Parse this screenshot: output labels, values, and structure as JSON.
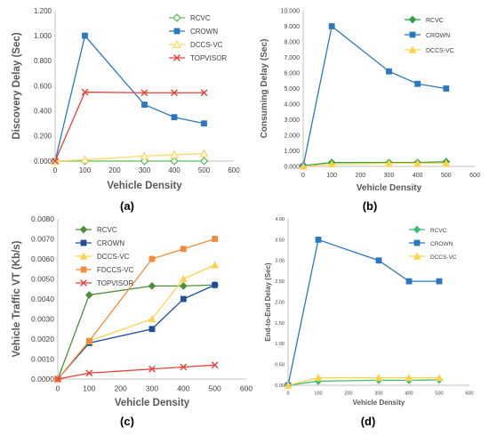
{
  "chart_data": [
    {
      "type": "line",
      "panel_label": "(a)",
      "xlabel": "Vehicle Density",
      "ylabel": "Discovery Delay (Sec)",
      "x_ticks": [
        "0",
        "100",
        "200",
        "300",
        "400",
        "500",
        "600"
      ],
      "y_ticks": [
        "0.000",
        "0.200",
        "0.400",
        "0.600",
        "0.800",
        "1.000",
        "1.200"
      ],
      "xlim": [
        0,
        600
      ],
      "ylim": [
        0,
        1.2
      ],
      "grid": false,
      "legend": "top-right",
      "series": [
        {
          "name": "RCVC",
          "color": "#5ebf5e",
          "marker": "diamond-open",
          "x": [
            0,
            100,
            300,
            400,
            500
          ],
          "values": [
            0,
            0.0,
            0.0,
            0.0,
            0.0
          ]
        },
        {
          "name": "CROWN",
          "color": "#2a78c0",
          "marker": "square",
          "x": [
            0,
            100,
            300,
            400,
            500
          ],
          "values": [
            0,
            1.0,
            0.45,
            0.35,
            0.3
          ]
        },
        {
          "name": "DCCS-VC",
          "color": "#ffd966",
          "marker": "triangle-open",
          "x": [
            0,
            100,
            300,
            400,
            500
          ],
          "values": [
            0,
            0.01,
            0.04,
            0.05,
            0.06
          ]
        },
        {
          "name": "TOPVISOR",
          "color": "#e8413a",
          "marker": "x",
          "x": [
            0,
            100,
            300,
            400,
            500
          ],
          "values": [
            0,
            0.55,
            0.545,
            0.545,
            0.545
          ]
        }
      ]
    },
    {
      "type": "line",
      "panel_label": "(b)",
      "xlabel": "Vehicle Density",
      "ylabel": "Consuming Delay (Sec)",
      "x_ticks": [
        "0",
        "100",
        "200",
        "300",
        "400",
        "500",
        "600"
      ],
      "y_ticks": [
        "0.000",
        "1.000",
        "2.000",
        "3.000",
        "4.000",
        "5.000",
        "6.000",
        "7.000",
        "8.000",
        "9.000",
        "10.000"
      ],
      "xlim": [
        0,
        600
      ],
      "ylim": [
        0,
        10
      ],
      "grid": false,
      "legend": "top-right",
      "series": [
        {
          "name": "RCVC",
          "color": "#2e9e4a",
          "marker": "diamond",
          "x": [
            0,
            100,
            300,
            400,
            500
          ],
          "values": [
            0.05,
            0.25,
            0.25,
            0.25,
            0.3
          ]
        },
        {
          "name": "CROWN",
          "color": "#2a78c0",
          "marker": "square",
          "x": [
            0,
            100,
            300,
            400,
            500
          ],
          "values": [
            0,
            9.0,
            6.1,
            5.3,
            5.0
          ]
        },
        {
          "name": "DCCS-VC",
          "color": "#ffd24d",
          "marker": "triangle",
          "x": [
            0,
            100,
            300,
            400,
            500
          ],
          "values": [
            0,
            0.15,
            0.2,
            0.2,
            0.2
          ]
        }
      ]
    },
    {
      "type": "line",
      "panel_label": "(c)",
      "xlabel": "Vehicle Density",
      "ylabel": "Vehicle Traffic VT (Kb/s)",
      "x_ticks": [
        "0",
        "100",
        "200",
        "300",
        "400",
        "500",
        "600"
      ],
      "y_ticks": [
        "0.0000",
        "0.0010",
        "0.0020",
        "0.0030",
        "0.0040",
        "0.0050",
        "0.0060",
        "0.0070",
        "0.0080"
      ],
      "xlim": [
        0,
        600
      ],
      "ylim": [
        0,
        0.008
      ],
      "grid": false,
      "legend": "top-left",
      "series": [
        {
          "name": "RCVC",
          "color": "#4e8f3a",
          "marker": "diamond",
          "x": [
            0,
            100,
            300,
            400,
            500
          ],
          "values": [
            0,
            0.0042,
            0.00465,
            0.00465,
            0.0047
          ]
        },
        {
          "name": "CROWN",
          "color": "#1f4e9a",
          "marker": "square",
          "x": [
            0,
            100,
            300,
            400,
            500
          ],
          "values": [
            0,
            0.0018,
            0.0025,
            0.004,
            0.0047
          ]
        },
        {
          "name": "DCCS-VC",
          "color": "#ffd24d",
          "marker": "triangle",
          "x": [
            0,
            100,
            300,
            400,
            500
          ],
          "values": [
            0,
            0.0019,
            0.003,
            0.005,
            0.0057
          ]
        },
        {
          "name": "FDCCS-VC",
          "color": "#f58a3a",
          "marker": "square",
          "x": [
            0,
            100,
            300,
            400,
            500
          ],
          "values": [
            0,
            0.0019,
            0.006,
            0.0065,
            0.007
          ]
        },
        {
          "name": "TOPVISOR",
          "color": "#e8413a",
          "marker": "x",
          "x": [
            0,
            100,
            300,
            400,
            500
          ],
          "values": [
            0,
            0.0003,
            0.0005,
            0.0006,
            0.0007
          ]
        }
      ]
    },
    {
      "type": "line",
      "panel_label": "(d)",
      "xlabel": "Vehicle Density",
      "ylabel": "End-to-End Delay (Sec)",
      "x_ticks": [
        "0",
        "100",
        "200",
        "300",
        "400",
        "500",
        "600"
      ],
      "y_ticks": [
        "0.00",
        "0.50",
        "1.00",
        "1.50",
        "2.00",
        "2.50",
        "3.00",
        "3.50",
        "4.00"
      ],
      "xlim": [
        0,
        600
      ],
      "ylim": [
        0,
        4
      ],
      "grid": false,
      "legend": "top-right",
      "series": [
        {
          "name": "RCVC",
          "color": "#3dbf73",
          "marker": "diamond",
          "x": [
            0,
            100,
            300,
            400,
            500
          ],
          "values": [
            0,
            0.1,
            0.12,
            0.12,
            0.13
          ]
        },
        {
          "name": "CROWN",
          "color": "#2a78c0",
          "marker": "square",
          "x": [
            0,
            100,
            300,
            400,
            500
          ],
          "values": [
            0,
            3.5,
            3.0,
            2.5,
            2.5
          ]
        },
        {
          "name": "DCCS-VC",
          "color": "#ffd24d",
          "marker": "triangle",
          "x": [
            0,
            100,
            300,
            400,
            500
          ],
          "values": [
            0,
            0.18,
            0.18,
            0.18,
            0.18
          ]
        }
      ]
    }
  ]
}
